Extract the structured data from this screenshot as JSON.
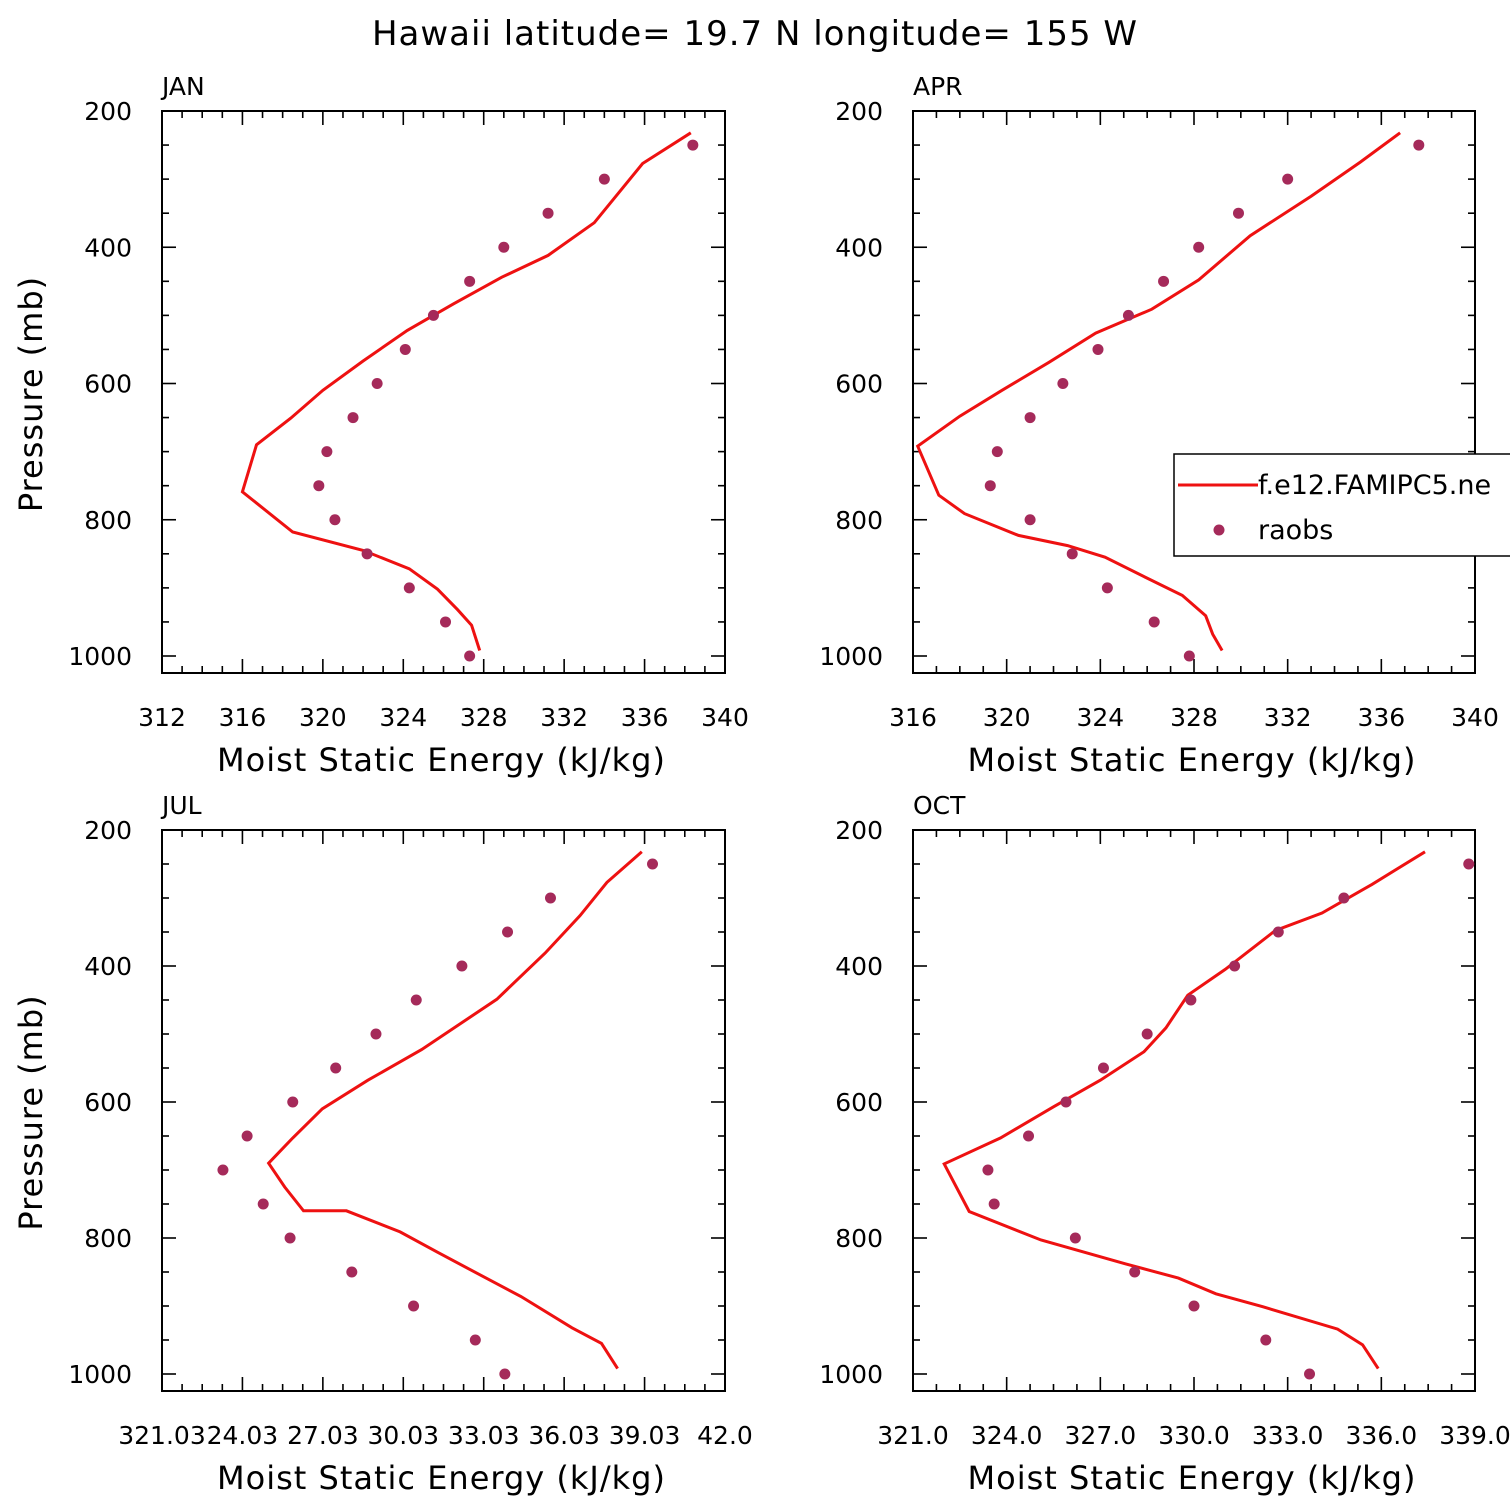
{
  "figure": {
    "title": "Hawaii  latitude= 19.7 N longitude= 155 W"
  },
  "legend": {
    "model_label": "f.e12.FAMIPC5.ne",
    "obs_label": "raobs"
  },
  "colors": {
    "model": "#ee1111",
    "obs": "#a52a5a",
    "axes": "#000000",
    "background": "#ffffff"
  },
  "chart_data": [
    {
      "type": "line",
      "panel": "JAN",
      "xlabel": "Moist Static Energy (kJ/kg)",
      "ylabel": "Pressure (mb)",
      "xlim": [
        312,
        340
      ],
      "ylim": [
        1000,
        200
      ],
      "y_scale": "linear, inverted",
      "x_ticks": [
        "312",
        "316",
        "320",
        "324",
        "328",
        "332",
        "336",
        "340"
      ],
      "y_ticks": [
        "200",
        "400",
        "600",
        "800",
        "1000"
      ],
      "series": [
        {
          "name": "f.e12.FAMIPC5.ne",
          "style": "line",
          "x": [
            327.8,
            327.4,
            326.7,
            325.7,
            324.3,
            322.0,
            318.5,
            316.0,
            316.7,
            318.4,
            320.0,
            322.0,
            324.2,
            326.5,
            328.9,
            331.2,
            333.5,
            335.9,
            338.3
          ],
          "y": [
            992,
            955,
            932,
            902,
            872,
            845,
            818,
            759,
            690,
            651,
            610,
            567,
            522,
            483,
            444,
            412,
            364,
            277,
            232
          ]
        },
        {
          "name": "raobs",
          "style": "marker",
          "x": [
            327.3,
            326.1,
            324.3,
            322.2,
            320.6,
            319.8,
            320.2,
            321.5,
            322.7,
            324.1,
            325.5,
            327.3,
            329.0,
            331.2,
            334.0,
            338.4
          ],
          "y": [
            1000,
            950,
            900,
            850,
            800,
            750,
            700,
            650,
            600,
            550,
            500,
            450,
            400,
            350,
            300,
            250
          ]
        }
      ]
    },
    {
      "type": "line",
      "panel": "APR",
      "xlabel": "Moist Static Energy (kJ/kg)",
      "ylabel": "",
      "xlim": [
        316,
        340
      ],
      "ylim": [
        1000,
        200
      ],
      "y_scale": "linear, inverted",
      "x_ticks": [
        "316",
        "320",
        "324",
        "328",
        "332",
        "336",
        "340"
      ],
      "y_ticks": [
        "200",
        "400",
        "600",
        "800",
        "1000"
      ],
      "series": [
        {
          "name": "f.e12.FAMIPC5.ne",
          "style": "line",
          "x": [
            329.2,
            328.8,
            328.5,
            327.5,
            325.9,
            324.2,
            322.6,
            320.5,
            318.2,
            317.1,
            316.2,
            318.0,
            319.8,
            321.8,
            323.8,
            326.2,
            328.2,
            330.4,
            333.0,
            335.1,
            336.8
          ],
          "y": [
            992,
            968,
            941,
            911,
            884,
            855,
            838,
            823,
            791,
            764,
            692,
            648,
            610,
            569,
            526,
            491,
            448,
            383,
            325,
            275,
            232
          ]
        },
        {
          "name": "raobs",
          "style": "marker",
          "x": [
            327.8,
            326.3,
            324.3,
            322.8,
            321.0,
            319.3,
            319.6,
            321.0,
            322.4,
            323.9,
            325.2,
            326.7,
            328.2,
            329.9,
            332.0,
            337.6
          ],
          "y": [
            1000,
            950,
            900,
            850,
            800,
            750,
            700,
            650,
            600,
            550,
            500,
            450,
            400,
            350,
            300,
            250
          ]
        }
      ]
    },
    {
      "type": "line",
      "panel": "JUL",
      "xlabel": "Moist Static Energy (kJ/kg)",
      "ylabel": "Pressure (mb)",
      "xlim": [
        321.03,
        342.0
      ],
      "ylim": [
        1000,
        200
      ],
      "y_scale": "linear, inverted",
      "x_ticks": [
        "321.03",
        "24.03",
        "27.03",
        "30.03",
        "33.03",
        "36.03",
        "39.03",
        "42.0"
      ],
      "y_ticks": [
        "200",
        "400",
        "600",
        "800",
        "1000"
      ],
      "series": [
        {
          "name": "f.e12.FAMIPC5.ne",
          "style": "line",
          "x": [
            338.0,
            337.4,
            336.3,
            334.4,
            333.1,
            331.3,
            329.9,
            327.9,
            326.3,
            325.6,
            325.0,
            325.9,
            327.0,
            328.7,
            330.7,
            333.5,
            335.3,
            336.6,
            337.6,
            338.9
          ],
          "y": [
            992,
            955,
            932,
            886,
            859,
            821,
            791,
            760,
            760,
            725,
            690,
            653,
            610,
            568,
            523,
            449,
            381,
            326,
            277,
            232
          ]
        },
        {
          "name": "raobs",
          "style": "marker",
          "x": [
            333.8,
            332.7,
            330.4,
            328.1,
            325.8,
            324.8,
            323.3,
            324.2,
            325.9,
            327.5,
            329.0,
            330.5,
            332.2,
            333.9,
            335.5,
            339.3
          ],
          "y": [
            1000,
            950,
            900,
            850,
            800,
            750,
            700,
            650,
            600,
            550,
            500,
            450,
            400,
            350,
            300,
            250
          ]
        }
      ]
    },
    {
      "type": "line",
      "panel": "OCT",
      "xlabel": "Moist Static Energy (kJ/kg)",
      "ylabel": "",
      "xlim": [
        321.0,
        339.0
      ],
      "ylim": [
        1000,
        200
      ],
      "y_scale": "linear, inverted",
      "x_ticks": [
        "321.0",
        "324.0",
        "327.0",
        "330.0",
        "333.0",
        "336.0",
        "339.0"
      ],
      "y_ticks": [
        "200",
        "400",
        "600",
        "800",
        "1000"
      ],
      "series": [
        {
          "name": "f.e12.FAMIPC5.ne",
          "style": "line",
          "x": [
            335.9,
            335.4,
            334.6,
            332.2,
            330.7,
            329.5,
            327.8,
            325.1,
            322.8,
            322.0,
            323.8,
            325.5,
            327.0,
            328.4,
            329.1,
            329.8,
            331.0,
            332.6,
            334.1,
            335.7,
            337.4
          ],
          "y": [
            992,
            957,
            934,
            901,
            882,
            859,
            838,
            803,
            761,
            691,
            653,
            607,
            568,
            526,
            491,
            443,
            405,
            348,
            322,
            280,
            232
          ]
        },
        {
          "name": "raobs",
          "style": "marker",
          "x": [
            333.7,
            332.3,
            330.0,
            328.1,
            326.2,
            323.6,
            323.4,
            324.7,
            325.9,
            327.1,
            328.5,
            329.9,
            331.3,
            332.7,
            334.8,
            338.8
          ],
          "y": [
            1000,
            950,
            900,
            850,
            800,
            750,
            700,
            650,
            600,
            550,
            500,
            450,
            400,
            350,
            300,
            250
          ]
        }
      ]
    }
  ]
}
